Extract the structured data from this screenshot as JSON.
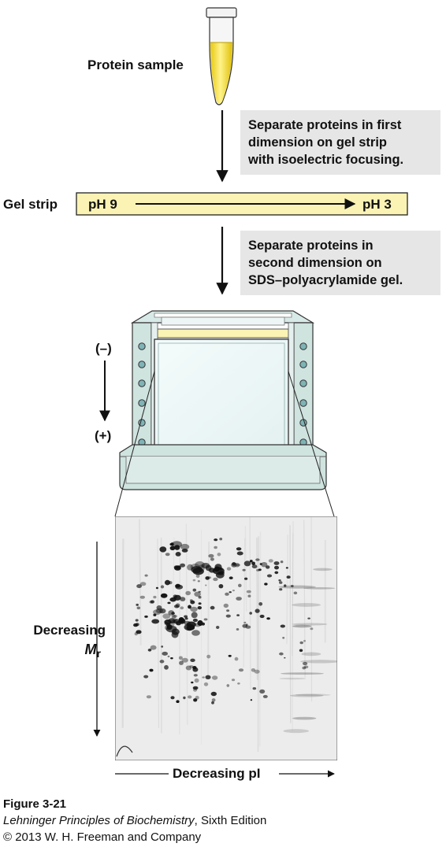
{
  "sample": {
    "label": "Protein sample"
  },
  "step1": {
    "lines": [
      "Separate proteins in first",
      "dimension on gel strip",
      "with isoelectric focusing."
    ]
  },
  "strip": {
    "label": "Gel strip",
    "left_ph": "pH 9",
    "right_ph": "pH 3"
  },
  "step2": {
    "lines": [
      "Separate proteins in",
      "second dimension on",
      "SDS–polyacrylamide gel."
    ]
  },
  "electrophoresis": {
    "negative": "(–)",
    "positive": "(+)"
  },
  "gel": {
    "y_axis_label": "Decreasing",
    "y_axis_symbol": "M",
    "y_axis_subscript": "r",
    "x_axis_label": "Decreasing pI"
  },
  "caption": {
    "figure": "Figure 3-21",
    "book_title": "Lehninger Principles of Biochemistry",
    "edition": ", Sixth Edition",
    "copyright": "© 2013 W. H. Freeman and Company"
  },
  "colors": {
    "sample_liquid": "#f2dc2a",
    "strip_fill": "#fbf3b4",
    "gel_frame": "#cfe3df",
    "note_background": "#e6e6e6"
  }
}
